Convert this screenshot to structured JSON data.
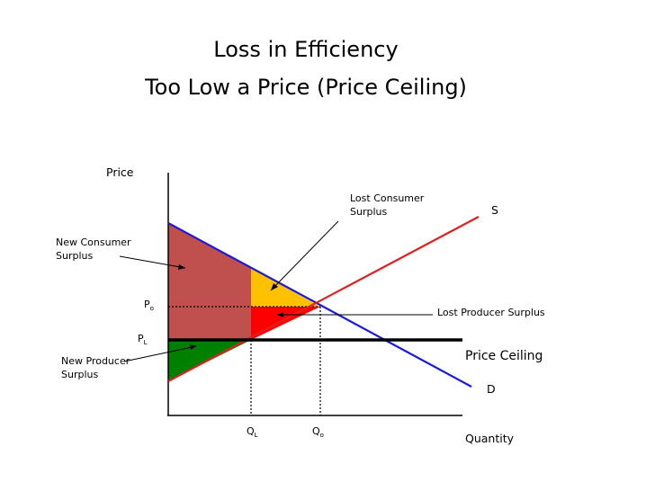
{
  "title": {
    "line1": "Loss in Efficiency",
    "line2": "Too Low a Price (Price Ceiling)"
  },
  "axes": {
    "y_label": "Price",
    "x_label": "Quantity"
  },
  "curves": {
    "supply_label": "S",
    "demand_label": "D",
    "price_ceiling_label": "Price Ceiling"
  },
  "markers": {
    "p0": {
      "main": "P",
      "sub": "o"
    },
    "pl": {
      "main": "P",
      "sub": "L"
    },
    "ql": {
      "main": "Q",
      "sub": "L"
    },
    "q0": {
      "main": "Q",
      "sub": "o"
    }
  },
  "annotations": {
    "new_consumer_surplus": [
      "New Consumer",
      "Surplus"
    ],
    "lost_consumer_surplus": [
      "Lost Consumer",
      "Surplus"
    ],
    "new_producer_surplus": [
      "New Producer",
      "Surplus"
    ],
    "lost_producer_surplus": "Lost Producer Surplus"
  },
  "colors": {
    "supply": "#e02020",
    "demand": "#1a1adf",
    "new_consumer_surplus": "#c0504d",
    "lost_consumer_surplus": "#ffc000",
    "lost_producer_surplus": "#ff0000",
    "new_producer_surplus": "#008000"
  }
}
